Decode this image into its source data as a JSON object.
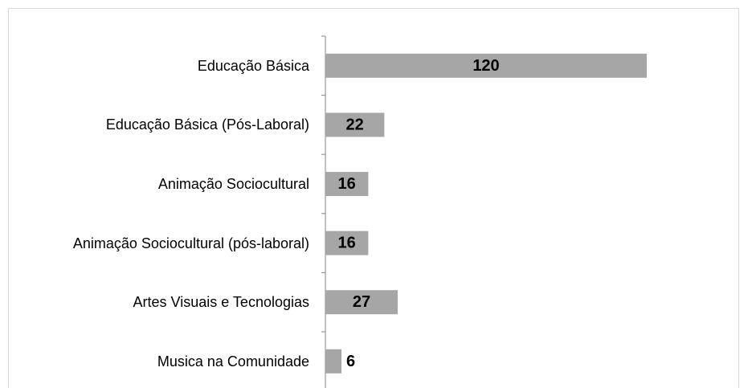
{
  "chart_data": {
    "type": "barh",
    "categories": [
      "Educação Básica",
      "Educação Básica (Pós-Laboral)",
      "Animação Sociocultural",
      "Animação Sociocultural (pós-laboral)",
      "Artes Visuais e Tecnologias",
      "Musica na Comunidade"
    ],
    "values": [
      120,
      22,
      16,
      16,
      27,
      6
    ],
    "color": "#a6a6a6"
  }
}
